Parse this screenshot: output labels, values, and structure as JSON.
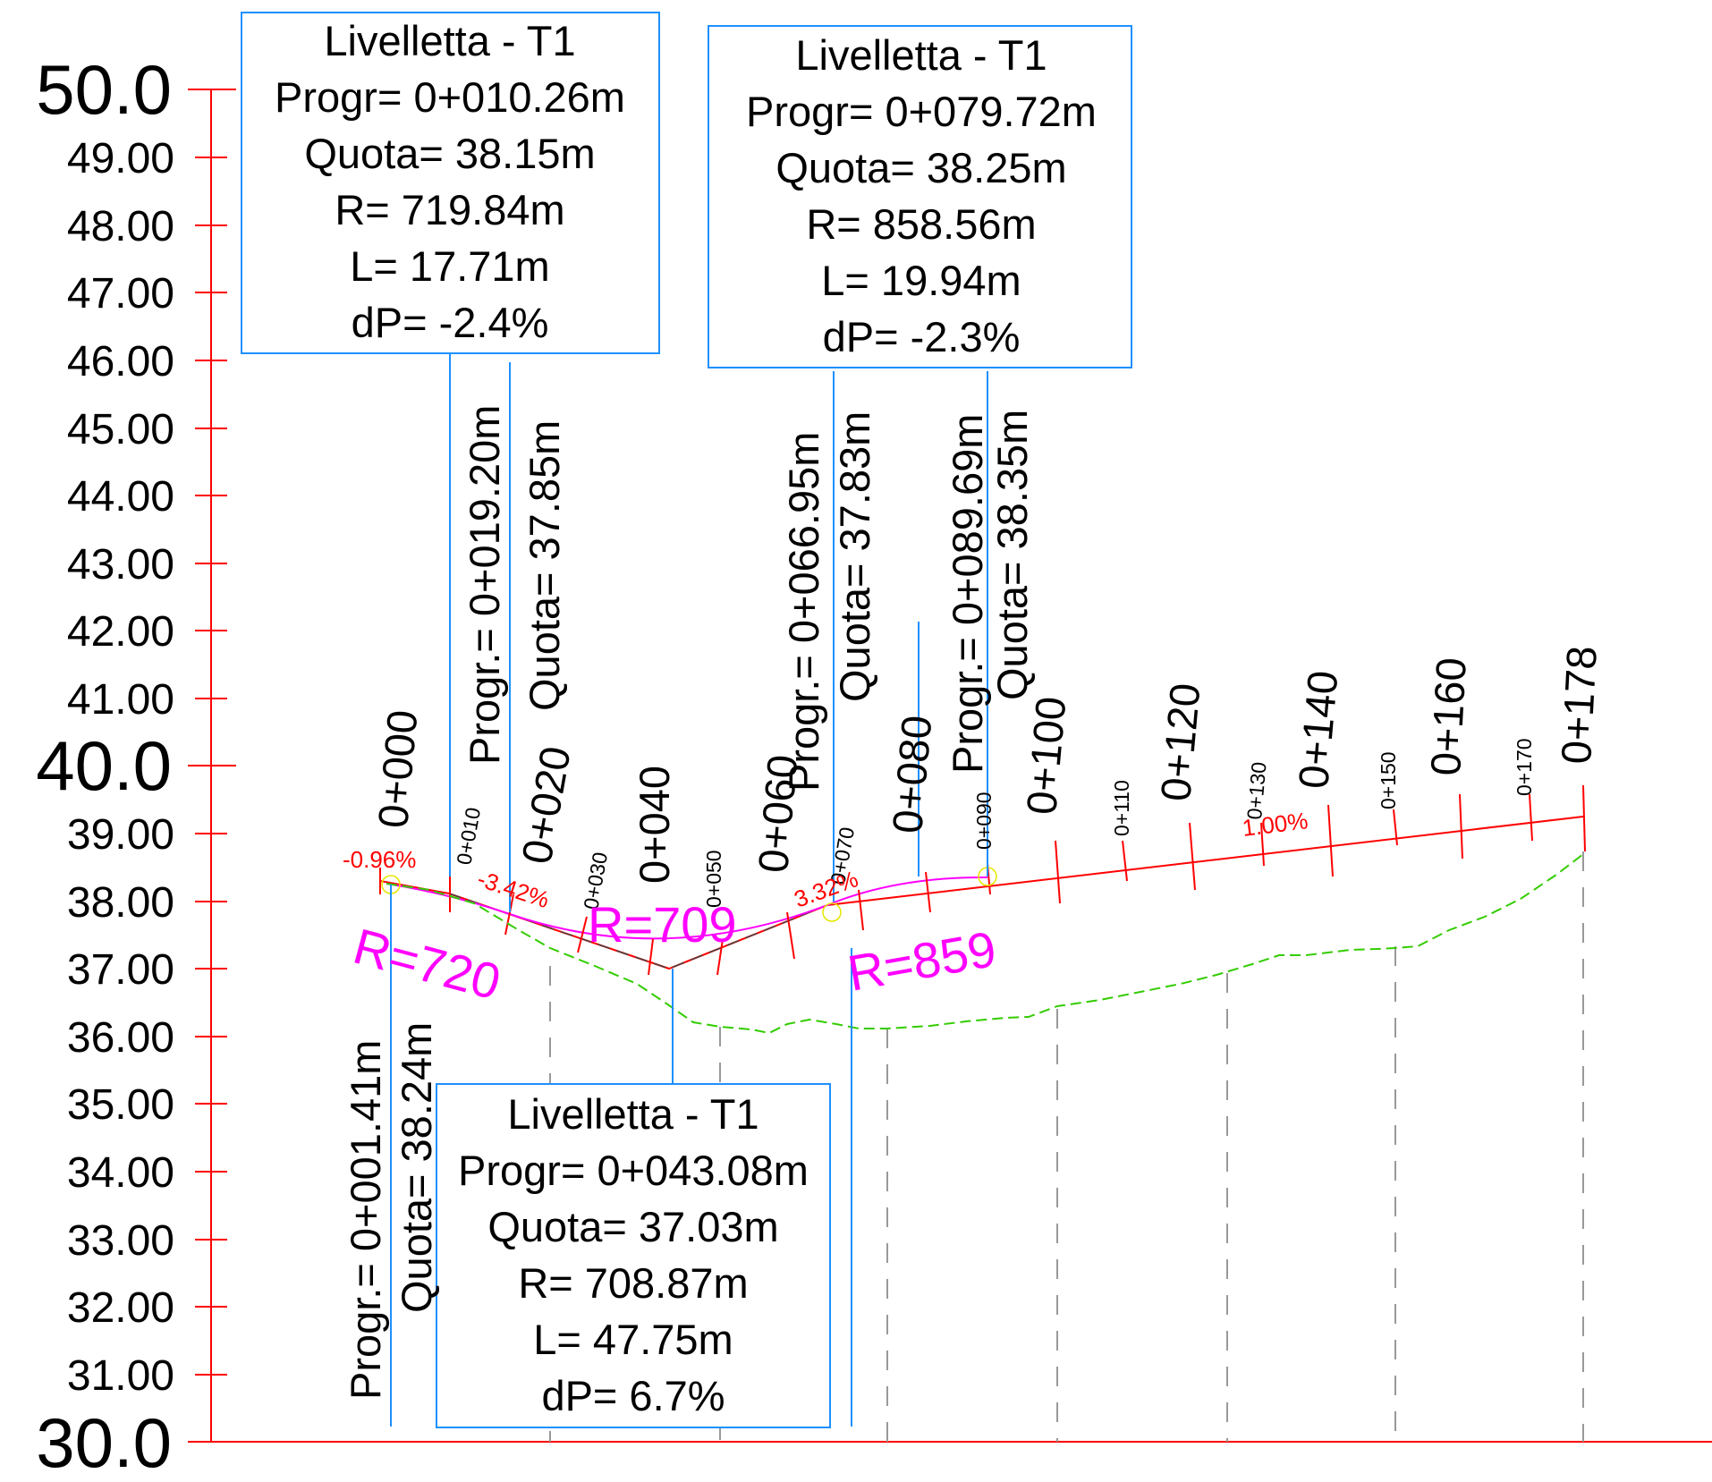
{
  "y_axis": {
    "labels": [
      {
        "value": 50,
        "text": "50.0",
        "major": true
      },
      {
        "value": 49,
        "text": "49.00",
        "major": false
      },
      {
        "value": 48,
        "text": "48.00",
        "major": false
      },
      {
        "value": 47,
        "text": "47.00",
        "major": false
      },
      {
        "value": 46,
        "text": "46.00",
        "major": false
      },
      {
        "value": 45,
        "text": "45.00",
        "major": false
      },
      {
        "value": 44,
        "text": "44.00",
        "major": false
      },
      {
        "value": 43,
        "text": "43.00",
        "major": false
      },
      {
        "value": 42,
        "text": "42.00",
        "major": false
      },
      {
        "value": 41,
        "text": "41.00",
        "major": false
      },
      {
        "value": 40,
        "text": "40.0",
        "major": true
      },
      {
        "value": 39,
        "text": "39.00",
        "major": false
      },
      {
        "value": 38,
        "text": "38.00",
        "major": false
      },
      {
        "value": 37,
        "text": "37.00",
        "major": false
      },
      {
        "value": 36,
        "text": "36.00",
        "major": false
      },
      {
        "value": 35,
        "text": "35.00",
        "major": false
      },
      {
        "value": 34,
        "text": "34.00",
        "major": false
      },
      {
        "value": 33,
        "text": "33.00",
        "major": false
      },
      {
        "value": 32,
        "text": "32.00",
        "major": false
      },
      {
        "value": 31,
        "text": "31.00",
        "major": false
      },
      {
        "value": 30,
        "text": "30.0",
        "major": true
      }
    ]
  },
  "chainages": [
    {
      "text": "0+000",
      "major": true
    },
    {
      "text": "0+010",
      "major": false
    },
    {
      "text": "0+020",
      "major": true
    },
    {
      "text": "0+030",
      "major": false
    },
    {
      "text": "0+040",
      "major": true
    },
    {
      "text": "0+050",
      "major": false
    },
    {
      "text": "0+060",
      "major": true
    },
    {
      "text": "0+070",
      "major": false
    },
    {
      "text": "0+080",
      "major": true
    },
    {
      "text": "0+090",
      "major": false
    },
    {
      "text": "0+100",
      "major": true
    },
    {
      "text": "0+110",
      "major": false
    },
    {
      "text": "0+120",
      "major": true
    },
    {
      "text": "0+130",
      "major": false
    },
    {
      "text": "0+140",
      "major": true
    },
    {
      "text": "0+150",
      "major": false
    },
    {
      "text": "0+160",
      "major": true
    },
    {
      "text": "0+170",
      "major": false
    },
    {
      "text": "0+178",
      "major": true
    }
  ],
  "vertical_curves": [
    {
      "title": "Livelletta - T1",
      "progr": "Progr= 0+010.26m",
      "quota": "Quota= 38.15m",
      "r": "R= 719.84m",
      "l": "L= 17.71m",
      "dp": "dP= -2.4%"
    },
    {
      "title": "Livelletta - T1",
      "progr": "Progr= 0+079.72m",
      "quota": "Quota= 38.25m",
      "r": "R= 858.56m",
      "l": "L= 19.94m",
      "dp": "dP= -2.3%"
    },
    {
      "title": "Livelletta - T1",
      "progr": "Progr= 0+043.08m",
      "quota": "Quota= 37.03m",
      "r": "R= 708.87m",
      "l": "L= 47.75m",
      "dp": "dP= 6.7%"
    }
  ],
  "tangent_points": [
    {
      "progr": "Progr.= 0+001.41m",
      "quota": "Quota= 38.24m"
    },
    {
      "progr": "Progr.= 0+019.20m",
      "quota": "Quota= 37.85m"
    },
    {
      "progr": "Progr.= 0+066.95m",
      "quota": "Quota= 37.83m"
    },
    {
      "progr": "Progr.= 0+089.69m",
      "quota": "Quota= 38.35m"
    }
  ],
  "grades": [
    {
      "text": "-0.96%"
    },
    {
      "text": "-3.42%"
    },
    {
      "text": "3.32%"
    },
    {
      "text": "1.00%"
    }
  ],
  "radii": [
    {
      "text": "R=720"
    },
    {
      "text": "R=709"
    },
    {
      "text": "R=859"
    }
  ],
  "colors": {
    "axis": "#ff0000",
    "grade_line": "#ff0000",
    "ground": "#33cc00",
    "curve": "#ff00ff",
    "leader": "#1e90ff",
    "box_border": "#1e90ff",
    "dashed": "#999999"
  }
}
